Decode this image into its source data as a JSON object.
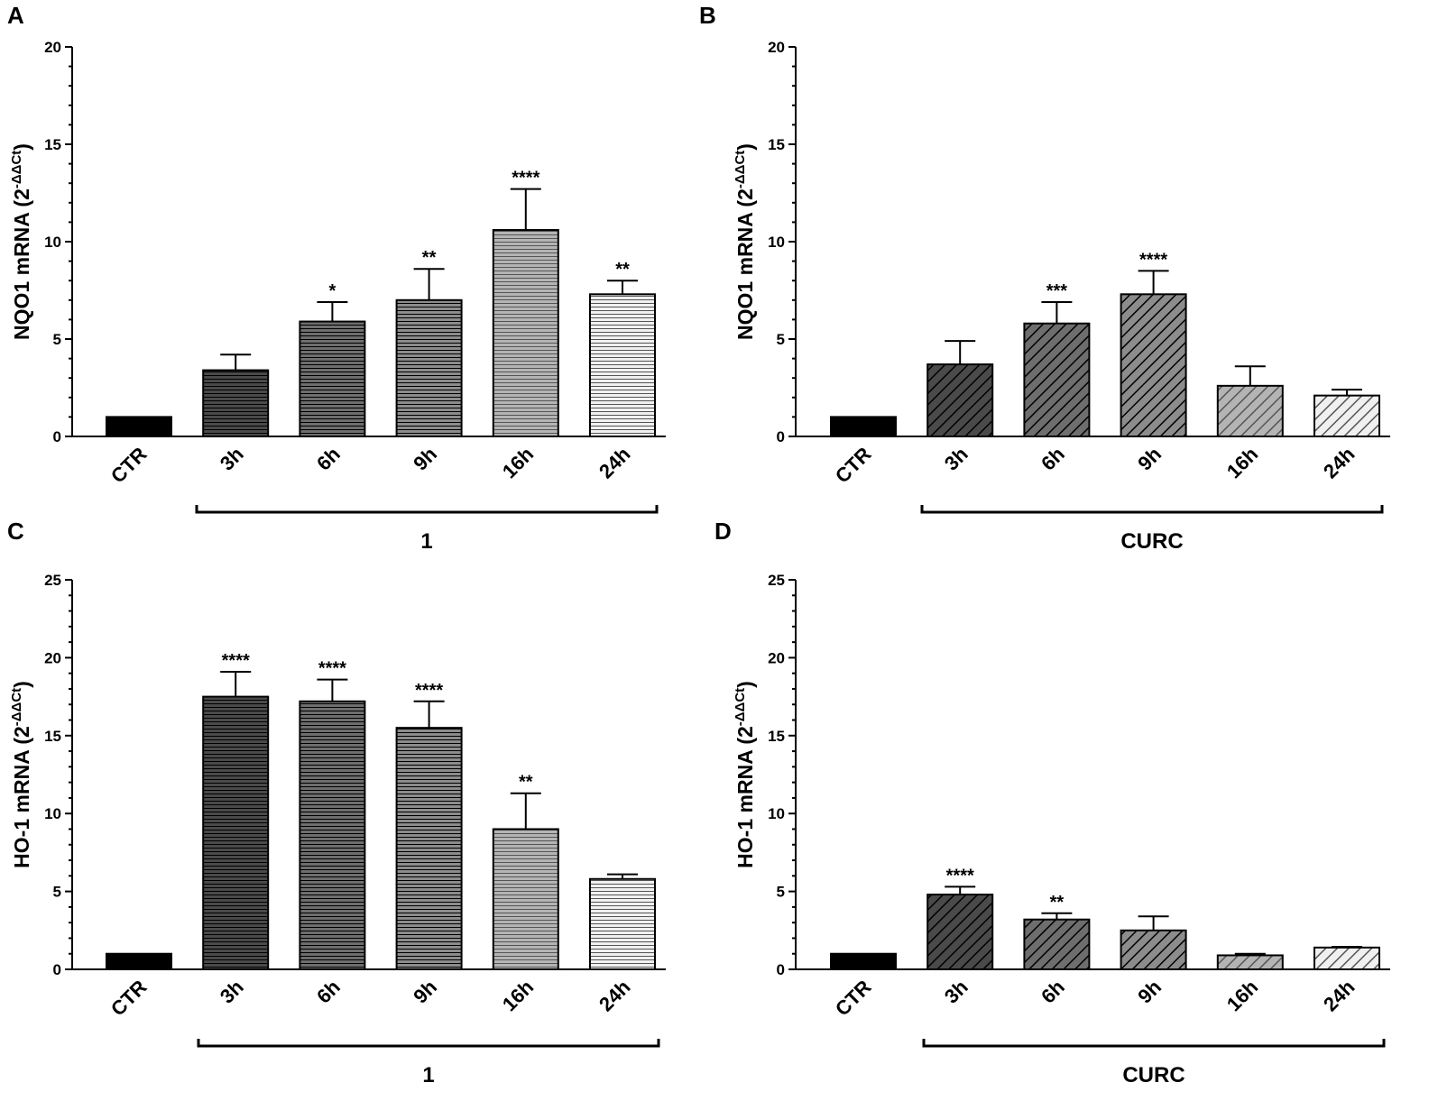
{
  "chart_data": [
    {
      "panel": "A",
      "type": "bar",
      "categories": [
        "CTR",
        "3h",
        "6h",
        "9h",
        "16h",
        "24h"
      ],
      "values": [
        1.0,
        3.4,
        5.9,
        7.0,
        10.6,
        7.3
      ],
      "errors": [
        0,
        0.8,
        1.0,
        1.6,
        2.1,
        0.7
      ],
      "significance": [
        "",
        "",
        "*",
        "**",
        "****",
        "**"
      ],
      "fill_colors": [
        "#000000",
        "#4a4a4a",
        "#6e6e6e",
        "#8c8c8c",
        "#b4b4b4",
        "#f0f0f0"
      ],
      "pattern": "horizontal",
      "ylabel": "NQO1 mRNA (2",
      "ylabel_sup": "-ΔΔCt",
      "ylabel_close": ")",
      "ylim": [
        0,
        20
      ],
      "yticks": [
        "0",
        "5",
        "10",
        "15",
        "20"
      ],
      "group_label": "1",
      "group_span": [
        "3h",
        "24h"
      ]
    },
    {
      "panel": "B",
      "type": "bar",
      "categories": [
        "CTR",
        "3h",
        "6h",
        "9h",
        "16h",
        "24h"
      ],
      "values": [
        1.0,
        3.7,
        5.8,
        7.3,
        2.6,
        2.1
      ],
      "errors": [
        0,
        1.2,
        1.1,
        1.2,
        1.0,
        0.3
      ],
      "significance": [
        "",
        "",
        "***",
        "****",
        "",
        ""
      ],
      "fill_colors": [
        "#000000",
        "#4a4a4a",
        "#6e6e6e",
        "#8c8c8c",
        "#b4b4b4",
        "#f0f0f0"
      ],
      "pattern": "diagonal",
      "ylabel": "NQO1 mRNA (2",
      "ylabel_sup": "-ΔΔCt",
      "ylabel_close": ")",
      "ylim": [
        0,
        20
      ],
      "yticks": [
        "0",
        "5",
        "10",
        "15",
        "20"
      ],
      "group_label": "CURC",
      "group_span": [
        "3h",
        "24h"
      ]
    },
    {
      "panel": "C",
      "type": "bar",
      "categories": [
        "CTR",
        "3h",
        "6h",
        "9h",
        "16h",
        "24h"
      ],
      "values": [
        1.0,
        17.5,
        17.2,
        15.5,
        9.0,
        5.8
      ],
      "errors": [
        0,
        1.6,
        1.4,
        1.7,
        2.3,
        0.3
      ],
      "significance": [
        "",
        "****",
        "****",
        "****",
        "**",
        ""
      ],
      "fill_colors": [
        "#000000",
        "#4a4a4a",
        "#6e6e6e",
        "#8c8c8c",
        "#b4b4b4",
        "#f0f0f0"
      ],
      "pattern": "horizontal",
      "ylabel": "HO-1 mRNA (2",
      "ylabel_sup": "-ΔΔCt",
      "ylabel_close": ")",
      "ylim": [
        0,
        25
      ],
      "yticks": [
        "0",
        "5",
        "10",
        "15",
        "20",
        "25"
      ],
      "group_label": "1",
      "group_span": [
        "3h",
        "24h"
      ]
    },
    {
      "panel": "D",
      "type": "bar",
      "categories": [
        "CTR",
        "3h",
        "6h",
        "9h",
        "16h",
        "24h"
      ],
      "values": [
        1.0,
        4.8,
        3.2,
        2.5,
        0.9,
        1.4
      ],
      "errors": [
        0,
        0.5,
        0.4,
        0.9,
        0.1,
        0.05
      ],
      "significance": [
        "",
        "****",
        "**",
        "",
        "",
        ""
      ],
      "fill_colors": [
        "#000000",
        "#4a4a4a",
        "#6e6e6e",
        "#8c8c8c",
        "#b4b4b4",
        "#f0f0f0"
      ],
      "pattern": "diagonal",
      "ylabel": "HO-1 mRNA (2",
      "ylabel_sup": "-ΔΔCt",
      "ylabel_close": ")",
      "ylim": [
        0,
        25
      ],
      "yticks": [
        "0",
        "5",
        "10",
        "15",
        "20",
        "25"
      ],
      "group_label": "CURC",
      "group_span": [
        "3h",
        "24h"
      ]
    }
  ]
}
